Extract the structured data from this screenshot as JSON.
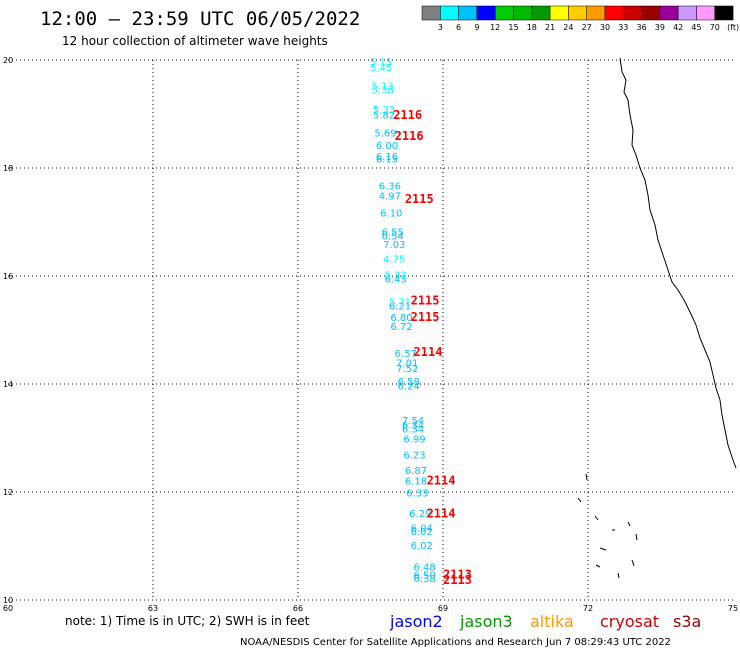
{
  "header": {
    "title": "12:00 – 23:59 UTC 06/05/2022",
    "subtitle": "12 hour collection of altimeter wave heights"
  },
  "legend": {
    "colors": [
      "#7f7f7f",
      "#00ffff",
      "#00bfff",
      "#0000ff",
      "#00cc00",
      "#00bb00",
      "#009900",
      "#ffff00",
      "#ffcc00",
      "#ff9900",
      "#ff0000",
      "#cc0000",
      "#990000",
      "#990099",
      "#cc99ff",
      "#ff99ff",
      "#000000"
    ],
    "labels": [
      "3",
      "6",
      "9",
      "12",
      "15",
      "18",
      "21",
      "24",
      "27",
      "30",
      "33",
      "36",
      "39",
      "42",
      "45",
      "70",
      "(ft)"
    ]
  },
  "footer": {
    "note": "note: 1) Time is in UTC; 2) SWH is in feet",
    "credit": "NOAA/NESDIS Center for Satellite Applications and Research   Jun  7 08:29:43 UTC 2022",
    "satellites": [
      {
        "name": "jason2",
        "color": "#0000ff"
      },
      {
        "name": "jason3",
        "color": "#009900"
      },
      {
        "name": "altika",
        "color": "#ff9900"
      },
      {
        "name": "cryosat",
        "color": "#cc0000"
      },
      {
        "name": "s3a",
        "color": "#990000"
      }
    ]
  },
  "chart_data": {
    "type": "scatter",
    "x_ticks": [
      "60",
      "63",
      "66",
      "69",
      "72",
      "75"
    ],
    "y_ticks": [
      "10",
      "12",
      "14",
      "16",
      "18",
      "20"
    ],
    "xlim": [
      60,
      75
    ],
    "ylim": [
      10,
      20
    ],
    "grid": true,
    "obs_color": "#00bfff",
    "obs_color_light": "#00ffff",
    "cycle_color": "#ff0000",
    "observations": [
      {
        "lat": 19.9,
        "lon": 67.49,
        "value": "5.15",
        "light": true
      },
      {
        "lat": 19.8,
        "lon": 67.49,
        "value": "5.45",
        "light": true
      },
      {
        "lat": 19.45,
        "lon": 67.52,
        "value": "5.13",
        "light": true
      },
      {
        "lat": 19.38,
        "lon": 67.52,
        "value": "5.38",
        "light": true
      },
      {
        "lat": 19.02,
        "lon": 67.55,
        "value": "5.33",
        "light": true
      },
      {
        "lat": 18.92,
        "lon": 67.55,
        "value": "5.82",
        "light": false
      },
      {
        "lat": 18.58,
        "lon": 67.58,
        "value": "5.69",
        "light": false
      },
      {
        "lat": 18.35,
        "lon": 67.61,
        "value": "6.00",
        "light": false
      },
      {
        "lat": 18.15,
        "lon": 67.61,
        "value": "6.16",
        "light": false
      },
      {
        "lat": 18.1,
        "lon": 67.61,
        "value": "6.15",
        "light": false
      },
      {
        "lat": 17.6,
        "lon": 67.67,
        "value": "6.36",
        "light": false
      },
      {
        "lat": 17.42,
        "lon": 67.67,
        "value": "4.97",
        "light": false
      },
      {
        "lat": 17.1,
        "lon": 67.7,
        "value": "6.10",
        "light": false
      },
      {
        "lat": 16.75,
        "lon": 67.73,
        "value": "6.55",
        "light": false
      },
      {
        "lat": 16.68,
        "lon": 67.73,
        "value": "6.54",
        "light": false
      },
      {
        "lat": 16.52,
        "lon": 67.76,
        "value": "7.03",
        "light": false
      },
      {
        "lat": 16.25,
        "lon": 67.76,
        "value": "4.75",
        "light": true
      },
      {
        "lat": 15.95,
        "lon": 67.79,
        "value": "5.32",
        "light": true
      },
      {
        "lat": 15.88,
        "lon": 67.79,
        "value": "6.43",
        "light": false
      },
      {
        "lat": 15.45,
        "lon": 67.88,
        "value": "5.71",
        "light": true
      },
      {
        "lat": 15.38,
        "lon": 67.88,
        "value": "6.21",
        "light": false
      },
      {
        "lat": 15.17,
        "lon": 67.91,
        "value": "6.80",
        "light": false
      },
      {
        "lat": 15.0,
        "lon": 67.91,
        "value": "6.72",
        "light": false
      },
      {
        "lat": 14.5,
        "lon": 68.0,
        "value": "6.57",
        "light": false
      },
      {
        "lat": 14.32,
        "lon": 68.03,
        "value": "7.01",
        "light": false
      },
      {
        "lat": 14.22,
        "lon": 68.03,
        "value": "7.52",
        "light": false
      },
      {
        "lat": 13.98,
        "lon": 68.06,
        "value": "6.58",
        "light": false
      },
      {
        "lat": 13.9,
        "lon": 68.06,
        "value": "6.24",
        "light": false
      },
      {
        "lat": 13.26,
        "lon": 68.15,
        "value": "7.54",
        "light": false
      },
      {
        "lat": 13.18,
        "lon": 68.15,
        "value": "6.34",
        "light": false
      },
      {
        "lat": 13.1,
        "lon": 68.15,
        "value": "6.34",
        "light": false
      },
      {
        "lat": 12.92,
        "lon": 68.18,
        "value": "6.99",
        "light": false
      },
      {
        "lat": 12.62,
        "lon": 68.18,
        "value": "6.23",
        "light": false
      },
      {
        "lat": 12.33,
        "lon": 68.21,
        "value": "6.87",
        "light": false
      },
      {
        "lat": 12.14,
        "lon": 68.21,
        "value": "6.18",
        "light": false
      },
      {
        "lat": 11.92,
        "lon": 68.24,
        "value": "6.33",
        "light": false
      },
      {
        "lat": 11.54,
        "lon": 68.3,
        "value": "6.29",
        "light": false
      },
      {
        "lat": 11.27,
        "lon": 68.33,
        "value": "6.04",
        "light": false
      },
      {
        "lat": 11.2,
        "lon": 68.33,
        "value": "6.02",
        "light": false
      },
      {
        "lat": 10.94,
        "lon": 68.33,
        "value": "6.02",
        "light": false
      },
      {
        "lat": 10.55,
        "lon": 68.39,
        "value": "6.48",
        "light": false
      },
      {
        "lat": 10.4,
        "lon": 68.39,
        "value": "6.50",
        "light": false
      },
      {
        "lat": 10.33,
        "lon": 68.39,
        "value": "6.38",
        "light": false
      }
    ],
    "cycles": [
      {
        "lat": 18.91,
        "lon": 67.97,
        "label": "2116"
      },
      {
        "lat": 18.52,
        "lon": 68.0,
        "label": "2116"
      },
      {
        "lat": 17.35,
        "lon": 68.21,
        "label": "2115"
      },
      {
        "lat": 15.47,
        "lon": 68.33,
        "label": "2115"
      },
      {
        "lat": 15.17,
        "lon": 68.33,
        "label": "2115"
      },
      {
        "lat": 14.52,
        "lon": 68.39,
        "label": "2114"
      },
      {
        "lat": 12.14,
        "lon": 68.66,
        "label": "2114"
      },
      {
        "lat": 11.53,
        "lon": 68.66,
        "label": "2114"
      },
      {
        "lat": 10.4,
        "lon": 69.0,
        "label": "2113"
      },
      {
        "lat": 10.3,
        "lon": 69.0,
        "label": "2113"
      }
    ]
  }
}
